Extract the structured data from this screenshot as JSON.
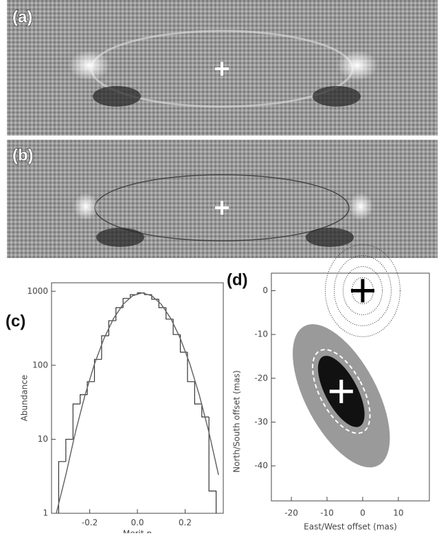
{
  "images": [
    {
      "label": "(a)"
    },
    {
      "label": "(b)"
    }
  ],
  "chart_data": [
    {
      "type": "histogram",
      "label": "(c)",
      "xlabel": "Merit η",
      "ylabel": "Abundance",
      "log_y": true,
      "color": "#333333",
      "bins": [
        -0.33,
        -0.3,
        -0.27,
        -0.24,
        -0.21,
        -0.18,
        -0.15,
        -0.12,
        -0.09,
        -0.06,
        -0.03,
        0.0,
        0.03,
        0.06,
        0.09,
        0.12,
        0.15,
        0.18,
        0.21,
        0.24,
        0.27,
        0.3,
        0.33
      ],
      "counts": [
        5,
        10,
        30,
        40,
        60,
        120,
        250,
        400,
        600,
        800,
        900,
        950,
        900,
        780,
        600,
        420,
        260,
        150,
        60,
        30,
        20,
        2
      ],
      "fit": {
        "color": "#666666",
        "x": [
          -0.34,
          -0.3,
          -0.26,
          -0.22,
          -0.18,
          -0.14,
          -0.1,
          -0.06,
          -0.02,
          0.02,
          0.06,
          0.1,
          0.14,
          0.18,
          0.22,
          0.26,
          0.3,
          0.34
        ],
        "values": [
          1,
          3.3,
          12.4,
          39,
          104,
          230,
          428,
          666,
          870,
          950,
          870,
          666,
          428,
          230,
          104,
          39,
          12.4,
          3.3
        ]
      },
      "xlim": [
        -0.36,
        0.36
      ],
      "xticks": [
        -0.2,
        {
          "value": 0,
          "label": "0.0"
        },
        0.2
      ],
      "ylim": [
        1,
        1300
      ],
      "yticks": [
        1,
        10,
        100,
        1000
      ]
    },
    {
      "type": "scatter",
      "label": "(d)",
      "xlabel": "East/West offset (mas)",
      "ylabel": "North/South offset (mas)",
      "xlim": [
        -25.6,
        18.7
      ],
      "xticks": [
        -20,
        -10,
        0,
        10
      ],
      "ylim": [
        -48,
        4
      ],
      "yticks": [
        0,
        -10,
        -20,
        -30,
        -40
      ],
      "ellipses": [
        {
          "x": -6,
          "y": -24,
          "rx": 10,
          "ry": 18,
          "angle": -28,
          "color": "#9a9a9a",
          "dash": false
        },
        {
          "x": -6,
          "y": -23,
          "rx": 4.5,
          "ry": 9,
          "angle": -28,
          "color": "#111111",
          "dash": false
        },
        {
          "x": -6,
          "y": -23,
          "rx": 6,
          "ry": 10.5,
          "angle": -28,
          "color": "none",
          "dash": true
        }
      ],
      "circles": {
        "x": 0,
        "y": 0,
        "radii": [
          3,
          5.5,
          8,
          10.5
        ],
        "color": "#222222"
      },
      "markers": [
        {
          "x": 0,
          "y": 0,
          "color": "#000000"
        },
        {
          "x": -6,
          "y": -23,
          "color": "#ffffff"
        }
      ]
    }
  ]
}
